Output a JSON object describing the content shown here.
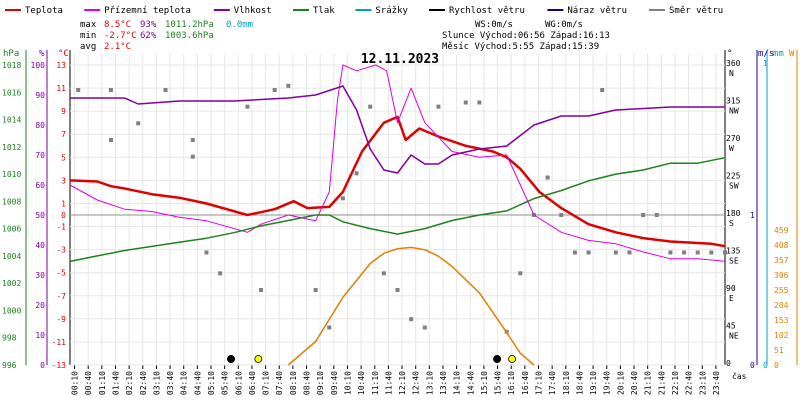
{
  "chart_data": {
    "type": "line",
    "title": "12.11.2023",
    "legend": [
      {
        "label": "Teplota",
        "color": "#e00000"
      },
      {
        "label": "Přízemní teplota",
        "color": "#e000e0"
      },
      {
        "label": "Vlhkost",
        "color": "#8000a0"
      },
      {
        "label": "Tlak",
        "color": "#208020"
      },
      {
        "label": "Srážky",
        "color": "#00a0c8"
      },
      {
        "label": "Rychlost větru",
        "color": "#000000"
      },
      {
        "label": "Náraz větru",
        "color": "#1a0080"
      },
      {
        "label": "Směr větru",
        "color": "#808080"
      }
    ],
    "stats": {
      "max_label": "max",
      "max_temp": "8.5°C",
      "max_hum": "93%",
      "max_press": "1011.2hPa",
      "max_rain": "0.0mm",
      "min_label": "min",
      "min_temp": "-2.7°C",
      "min_hum": "62%",
      "min_press": "1003.6hPa",
      "avg_label": "avg",
      "avg_temp": "2.1°C"
    },
    "wind_text": {
      "ws": "WS:0m/s",
      "wg": "WG:0m/s"
    },
    "sun_text": "Slunce Východ:06:56   Západ:16:13",
    "moon_text": "Měsíc  Východ:5:55    Západ:15:39",
    "axes": {
      "hpa": {
        "unit": "hPa",
        "ticks": [
          "1018",
          "1016",
          "1014",
          "1012",
          "1010",
          "1008",
          "1006",
          "1004",
          "1002",
          "1000",
          "998",
          "996"
        ],
        "color": "#208020"
      },
      "pct": {
        "unit": "%",
        "ticks": [
          "100",
          "90",
          "80",
          "70",
          "60",
          "50",
          "40",
          "30",
          "20",
          "10",
          "0"
        ],
        "color": "#8000a0"
      },
      "temp": {
        "unit": "°C",
        "ticks": [
          "13",
          "11",
          "9",
          "7",
          "5",
          "3",
          "1",
          "0",
          "-1",
          "-3",
          "-5",
          "-7",
          "-9",
          "-11",
          "-13"
        ],
        "color": "#e00000"
      },
      "deg": {
        "unit": "°",
        "ticks": [
          "360",
          "315",
          "270",
          "225",
          "180",
          "135",
          "90",
          "45",
          "0"
        ],
        "labels": [
          "N",
          "NW",
          "W",
          "SW",
          "S",
          "SE",
          "E",
          "NE",
          ""
        ]
      },
      "ms": {
        "unit": "m/s",
        "ticks": [
          "1",
          "0"
        ],
        "color": "#1a0080"
      },
      "mm": {
        "unit": "mm",
        "ticks": [
          "1",
          "0"
        ],
        "color": "#00a0c8"
      },
      "w": {
        "unit": "W",
        "ticks": [
          "459",
          "408",
          "357",
          "306",
          "255",
          "204",
          "153",
          "102",
          "51",
          "0"
        ],
        "color": "#e08000"
      },
      "x_label": "čas"
    },
    "x_ticks": [
      "00:10",
      "00:40",
      "01:10",
      "01:40",
      "02:10",
      "02:40",
      "03:10",
      "03:40",
      "04:10",
      "04:40",
      "05:10",
      "05:40",
      "06:10",
      "06:40",
      "07:10",
      "07:40",
      "08:10",
      "08:40",
      "09:10",
      "09:40",
      "10:10",
      "10:40",
      "11:10",
      "11:40",
      "12:10",
      "12:40",
      "13:10",
      "13:40",
      "14:10",
      "14:40",
      "15:10",
      "15:40",
      "16:10",
      "16:40",
      "17:10",
      "17:40",
      "18:10",
      "18:40",
      "19:10",
      "19:40",
      "20:10",
      "20:40",
      "21:10",
      "21:40",
      "22:10",
      "22:40",
      "23:10",
      "23:40"
    ],
    "series": [
      {
        "name": "Teplota",
        "color": "#e00000",
        "axis": "temp",
        "points": [
          [
            0,
            3
          ],
          [
            1,
            2.9
          ],
          [
            1.5,
            2.5
          ],
          [
            2,
            2.3
          ],
          [
            3,
            1.8
          ],
          [
            4,
            1.5
          ],
          [
            5,
            1
          ],
          [
            6.5,
            0
          ],
          [
            7.5,
            0.5
          ],
          [
            8.2,
            1.2
          ],
          [
            8.7,
            0.6
          ],
          [
            9.5,
            0.7
          ],
          [
            10,
            2
          ],
          [
            10.7,
            5.5
          ],
          [
            11.5,
            8
          ],
          [
            12,
            8.5
          ],
          [
            12.3,
            6.5
          ],
          [
            12.8,
            7.5
          ],
          [
            13.5,
            6.8
          ],
          [
            14.5,
            6
          ],
          [
            15.5,
            5.5
          ],
          [
            16,
            5
          ],
          [
            16.5,
            4
          ],
          [
            17.2,
            2
          ],
          [
            18,
            0.6
          ],
          [
            19,
            -0.8
          ],
          [
            20,
            -1.5
          ],
          [
            21,
            -2
          ],
          [
            22,
            -2.3
          ],
          [
            23.5,
            -2.5
          ],
          [
            24,
            -2.7
          ]
        ]
      },
      {
        "name": "Přízemní teplota",
        "color": "#e000e0",
        "axis": "temp",
        "points": [
          [
            0,
            2.6
          ],
          [
            1,
            1.3
          ],
          [
            2,
            0.5
          ],
          [
            3,
            0.3
          ],
          [
            4,
            -0.2
          ],
          [
            5,
            -0.5
          ],
          [
            6.5,
            -1.5
          ],
          [
            7,
            -0.8
          ],
          [
            8,
            0
          ],
          [
            9,
            -0.5
          ],
          [
            9.5,
            2
          ],
          [
            9.8,
            10
          ],
          [
            10,
            13
          ],
          [
            10.5,
            12.5
          ],
          [
            11.2,
            13
          ],
          [
            11.6,
            12.5
          ],
          [
            12,
            8
          ],
          [
            12.5,
            11
          ],
          [
            13,
            8
          ],
          [
            14,
            5.5
          ],
          [
            15,
            5
          ],
          [
            16,
            5.2
          ],
          [
            17,
            0
          ],
          [
            18,
            -1.5
          ],
          [
            19,
            -2.2
          ],
          [
            20,
            -2.5
          ],
          [
            21,
            -3.2
          ],
          [
            22,
            -3.8
          ],
          [
            23,
            -3.8
          ],
          [
            24,
            -4
          ]
        ]
      },
      {
        "name": "Vlhkost",
        "color": "#8000a0",
        "axis": "pct",
        "points": [
          [
            0,
            89
          ],
          [
            2,
            89
          ],
          [
            2.5,
            87
          ],
          [
            4,
            88
          ],
          [
            6,
            88
          ],
          [
            8,
            89
          ],
          [
            9,
            90
          ],
          [
            10,
            93
          ],
          [
            10.5,
            85
          ],
          [
            11,
            72
          ],
          [
            11.5,
            65
          ],
          [
            12,
            64
          ],
          [
            12.5,
            70
          ],
          [
            13,
            67
          ],
          [
            13.5,
            67
          ],
          [
            14,
            70
          ],
          [
            15,
            72
          ],
          [
            16,
            73
          ],
          [
            17,
            80
          ],
          [
            18,
            83
          ],
          [
            19,
            83
          ],
          [
            20,
            85
          ],
          [
            22,
            86
          ],
          [
            24,
            86
          ]
        ]
      },
      {
        "name": "Tlak",
        "color": "#208020",
        "axis": "hpa",
        "points": [
          [
            0,
            1003.6
          ],
          [
            1,
            1004
          ],
          [
            2,
            1004.4
          ],
          [
            3,
            1004.7
          ],
          [
            4,
            1005
          ],
          [
            5,
            1005.3
          ],
          [
            6,
            1005.7
          ],
          [
            7,
            1006.2
          ],
          [
            8,
            1006.6
          ],
          [
            9,
            1007
          ],
          [
            9.5,
            1007
          ],
          [
            10,
            1006.5
          ],
          [
            11,
            1006
          ],
          [
            12,
            1005.6
          ],
          [
            13,
            1006
          ],
          [
            14,
            1006.6
          ],
          [
            15,
            1007
          ],
          [
            16,
            1007.3
          ],
          [
            17,
            1008.2
          ],
          [
            18,
            1008.8
          ],
          [
            19,
            1009.5
          ],
          [
            20,
            1010
          ],
          [
            21,
            1010.3
          ],
          [
            22,
            1010.8
          ],
          [
            23,
            1010.8
          ],
          [
            24,
            1011.2
          ]
        ]
      },
      {
        "name": "Solar",
        "color": "#e08000",
        "axis": "w",
        "points": [
          [
            8,
            0
          ],
          [
            9,
            80
          ],
          [
            10,
            230
          ],
          [
            11,
            345
          ],
          [
            11.5,
            380
          ],
          [
            12,
            395
          ],
          [
            12.5,
            400
          ],
          [
            13,
            392
          ],
          [
            13.5,
            370
          ],
          [
            14,
            335
          ],
          [
            15,
            245
          ],
          [
            16,
            110
          ],
          [
            16.5,
            40
          ],
          [
            17,
            0
          ]
        ]
      }
    ],
    "wind_dir_dots": {
      "color": "#808080",
      "points": [
        [
          0.3,
          330
        ],
        [
          1.5,
          330
        ],
        [
          1.5,
          270
        ],
        [
          2.5,
          290
        ],
        [
          3.5,
          330
        ],
        [
          4.5,
          250
        ],
        [
          4.5,
          270
        ],
        [
          5,
          135
        ],
        [
          5.5,
          110
        ],
        [
          6.5,
          310
        ],
        [
          7,
          90
        ],
        [
          7.5,
          330
        ],
        [
          8,
          335
        ],
        [
          9,
          90
        ],
        [
          9.5,
          45
        ],
        [
          10,
          200
        ],
        [
          10.5,
          230
        ],
        [
          11,
          310
        ],
        [
          11.5,
          110
        ],
        [
          12,
          90
        ],
        [
          12.5,
          55
        ],
        [
          13,
          45
        ],
        [
          13.5,
          310
        ],
        [
          14.5,
          315
        ],
        [
          15,
          315
        ],
        [
          16,
          40
        ],
        [
          16.5,
          110
        ],
        [
          17,
          180
        ],
        [
          17.5,
          225
        ],
        [
          18,
          180
        ],
        [
          18.5,
          135
        ],
        [
          19,
          135
        ],
        [
          19.5,
          330
        ],
        [
          20,
          135
        ],
        [
          20.5,
          135
        ],
        [
          21,
          180
        ],
        [
          21.5,
          180
        ],
        [
          22,
          135
        ],
        [
          22.5,
          135
        ],
        [
          23,
          135
        ],
        [
          23.5,
          135
        ],
        [
          24,
          135
        ]
      ]
    },
    "sun_markers": [
      {
        "t": 6.9,
        "fill": "#ffff00"
      },
      {
        "t": 16.2,
        "fill": "#ffff00"
      }
    ],
    "moon_markers": [
      {
        "t": 5.9
      },
      {
        "t": 15.65
      }
    ],
    "xlim": [
      0,
      24
    ]
  }
}
